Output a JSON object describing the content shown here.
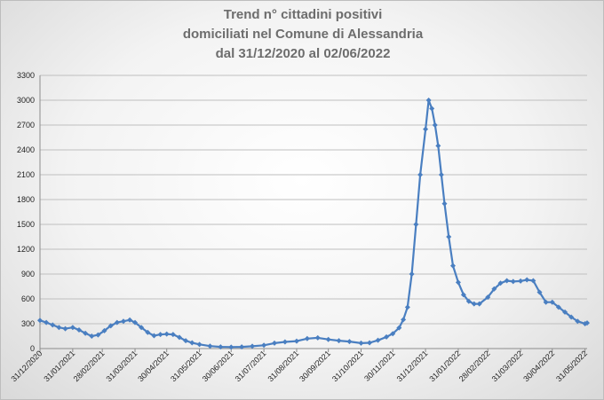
{
  "chart_data": {
    "type": "line",
    "title_lines": [
      "Trend n° cittadini positivi",
      "domiciliati nel Comune di Alessandria",
      "dal 31/12/2020 al 02/06/2022"
    ],
    "xlabel": "",
    "ylabel": "",
    "ylim": [
      0,
      3300
    ],
    "yticks": [
      0,
      300,
      600,
      900,
      1200,
      1500,
      1800,
      2100,
      2400,
      2700,
      3000,
      3300
    ],
    "xlim": [
      "2020-12-31",
      "2022-06-02"
    ],
    "xticks": [
      "31/12/2020",
      "31/01/2021",
      "28/02/2021",
      "31/03/2021",
      "30/04/2021",
      "31/05/2021",
      "30/06/2021",
      "31/07/2021",
      "31/08/2021",
      "30/09/2021",
      "31/10/2021",
      "30/11/2021",
      "31/12/2021",
      "31/01/2022",
      "28/02/2022",
      "31/03/2022",
      "30/04/2022",
      "31/05/2022"
    ],
    "grid": true,
    "line_color": "#4a7fc1",
    "series": [
      {
        "x": [
          "2020-12-31",
          "2021-01-06",
          "2021-01-12",
          "2021-01-18",
          "2021-01-24",
          "2021-01-31",
          "2021-02-06",
          "2021-02-12",
          "2021-02-18",
          "2021-02-24",
          "2021-03-02",
          "2021-03-08",
          "2021-03-14",
          "2021-03-20",
          "2021-03-26",
          "2021-03-31",
          "2021-04-06",
          "2021-04-12",
          "2021-04-18",
          "2021-04-24",
          "2021-04-30",
          "2021-05-06",
          "2021-05-12",
          "2021-05-18",
          "2021-05-24",
          "2021-05-31",
          "2021-06-10",
          "2021-06-20",
          "2021-06-30",
          "2021-07-10",
          "2021-07-20",
          "2021-07-31",
          "2021-08-10",
          "2021-08-20",
          "2021-08-31",
          "2021-09-10",
          "2021-09-20",
          "2021-09-30",
          "2021-10-10",
          "2021-10-20",
          "2021-10-31",
          "2021-11-08",
          "2021-11-16",
          "2021-11-24",
          "2021-11-30",
          "2021-12-06",
          "2021-12-10",
          "2021-12-14",
          "2021-12-18",
          "2021-12-22",
          "2021-12-26",
          "2021-12-31",
          "2022-01-03",
          "2022-01-06",
          "2022-01-09",
          "2022-01-12",
          "2022-01-15",
          "2022-01-18",
          "2022-01-22",
          "2022-01-26",
          "2022-01-31",
          "2022-02-05",
          "2022-02-10",
          "2022-02-15",
          "2022-02-20",
          "2022-02-28",
          "2022-03-06",
          "2022-03-12",
          "2022-03-18",
          "2022-03-24",
          "2022-03-31",
          "2022-04-06",
          "2022-04-12",
          "2022-04-18",
          "2022-04-24",
          "2022-04-30",
          "2022-05-06",
          "2022-05-12",
          "2022-05-18",
          "2022-05-24",
          "2022-05-31",
          "2022-06-02"
        ],
        "values": [
          340,
          315,
          285,
          255,
          240,
          255,
          225,
          185,
          150,
          165,
          215,
          275,
          315,
          330,
          345,
          315,
          255,
          195,
          155,
          170,
          175,
          170,
          135,
          95,
          70,
          50,
          30,
          20,
          18,
          20,
          28,
          40,
          65,
          80,
          90,
          120,
          130,
          110,
          95,
          85,
          65,
          70,
          100,
          140,
          180,
          250,
          350,
          500,
          900,
          1500,
          2100,
          2650,
          3000,
          2900,
          2700,
          2450,
          2100,
          1750,
          1350,
          1000,
          800,
          650,
          570,
          540,
          540,
          620,
          720,
          790,
          820,
          810,
          815,
          830,
          820,
          680,
          560,
          560,
          500,
          440,
          380,
          330,
          300,
          310
        ]
      }
    ]
  }
}
